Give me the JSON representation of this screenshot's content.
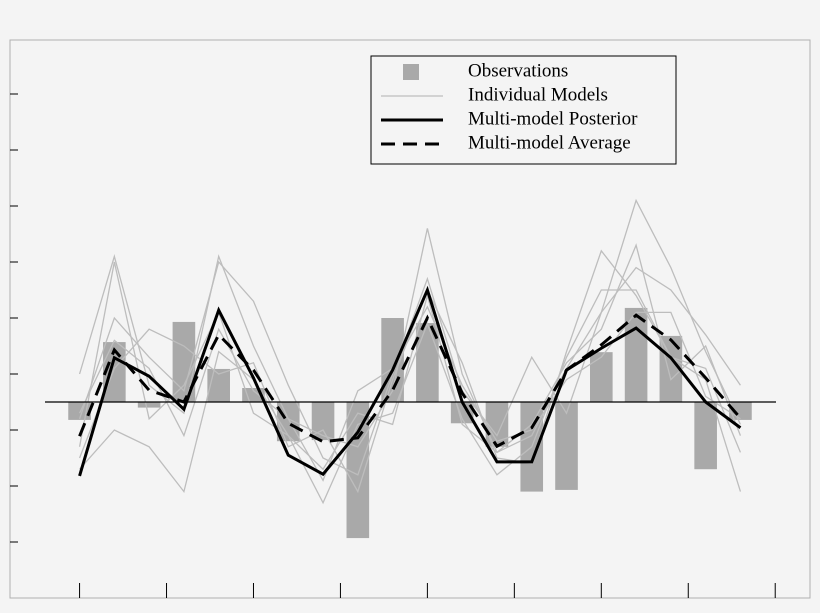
{
  "chart_data": {
    "type": "line",
    "x": [
      0,
      0.4,
      0.8,
      1.2,
      1.6,
      2.0,
      2.4,
      2.8,
      3.2,
      3.6,
      4.0,
      4.4,
      4.8,
      5.2,
      5.6,
      6.0,
      6.4,
      6.8,
      7.2,
      7.6
    ],
    "xlim": [
      -0.8,
      8.4
    ],
    "xticks": [
      0,
      1,
      2,
      3,
      4,
      5,
      6,
      7,
      8
    ],
    "ylim": [
      -3.5,
      6.5
    ],
    "yticks": [
      -2.5,
      -1.5,
      -0.5,
      0.5,
      1.5,
      2.5,
      3.5,
      4.5,
      5.5
    ],
    "series": [
      {
        "name": "Observations",
        "type": "bar",
        "color": "#a9a9a9",
        "values": [
          -0.32,
          1.07,
          -0.1,
          1.43,
          0.59,
          0.25,
          -0.7,
          -0.68,
          -2.43,
          1.5,
          1.41,
          -0.38,
          -0.8,
          -1.6,
          -1.57,
          0.89,
          1.68,
          1.18,
          -1.2,
          -0.32
        ]
      },
      {
        "name": "Individual Models",
        "type": "multi-line",
        "color": "#bdbdbd",
        "values": [
          [
            0.5,
            2.6,
            0.3,
            -0.2,
            2.6,
            1.0,
            -0.3,
            -0.6,
            -0.8,
            0.2,
            3.1,
            0.5,
            -0.9,
            -0.6,
            0.6,
            1.6,
            3.6,
            2.4,
            0.9,
            -0.4
          ],
          [
            -1.2,
            -0.5,
            -0.8,
            -1.6,
            0.9,
            0.4,
            -0.6,
            -1.8,
            -0.4,
            -0.2,
            1.4,
            -0.3,
            -1.3,
            -0.8,
            0.8,
            2.0,
            2.0,
            0.8,
            0.4,
            -1.6
          ],
          [
            -0.3,
            1.5,
            0.8,
            0.2,
            2.5,
            1.8,
            0.3,
            -1.0,
            -1.3,
            0.5,
            2.2,
            0.2,
            -0.6,
            0.8,
            -0.2,
            1.6,
            2.4,
            2.0,
            1.2,
            0.3
          ],
          [
            -1.0,
            0.6,
            1.3,
            1.0,
            0.5,
            0.7,
            -0.8,
            -0.5,
            -1.6,
            0.4,
            2.0,
            0.7,
            -1.0,
            -1.1,
            0.9,
            2.7,
            1.9,
            0.8,
            0.6,
            -0.9
          ],
          [
            -0.8,
            2.5,
            -0.3,
            0.3,
            1.6,
            -0.2,
            -0.6,
            -1.2,
            -0.2,
            -0.4,
            1.9,
            -0.4,
            -0.9,
            -0.4,
            0.7,
            1.3,
            2.8,
            0.4,
            1.0,
            -0.6
          ],
          [
            -0.2,
            1.1,
            0.6,
            -0.6,
            1.3,
            0.2,
            -0.3,
            -1.4,
            0.2,
            0.6,
            1.7,
            0.3,
            -0.7,
            -0.5,
            0.4,
            0.8,
            1.6,
            1.6,
            0.1,
            -0.3
          ]
        ]
      },
      {
        "name": "Multi-model Posterior",
        "type": "line",
        "color": "#000000",
        "dashed": false,
        "values": [
          -1.32,
          0.79,
          0.46,
          -0.13,
          1.64,
          0.43,
          -0.95,
          -1.29,
          -0.54,
          0.57,
          2.0,
          0,
          -1.07,
          -1.07,
          0.57,
          0.96,
          1.32,
          0.79,
          0,
          -0.46
        ]
      },
      {
        "name": "Multi-model Average",
        "type": "line",
        "color": "#000000",
        "dashed": true,
        "values": [
          -0.61,
          0.93,
          0.21,
          0,
          1.2,
          0.57,
          -0.38,
          -0.71,
          -0.64,
          0.21,
          1.5,
          0.16,
          -0.79,
          -0.46,
          0.57,
          1.02,
          1.55,
          1.11,
          0.43,
          -0.29
        ]
      }
    ]
  }
}
